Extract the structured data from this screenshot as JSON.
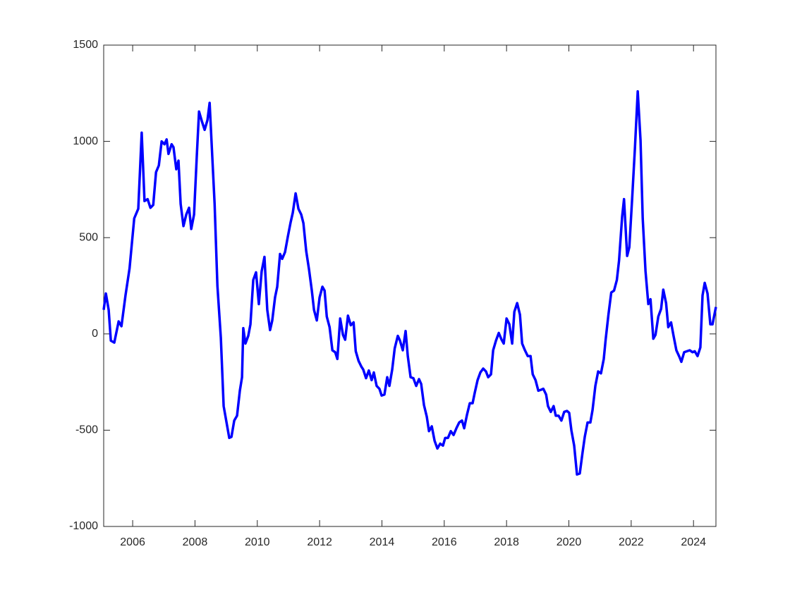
{
  "chart_data": {
    "type": "line",
    "color": "#0000ff",
    "x": [
      2005.07,
      2005.14,
      2005.23,
      2005.3,
      2005.41,
      2005.55,
      2005.64,
      2005.77,
      2005.9,
      2006.05,
      2006.18,
      2006.29,
      2006.38,
      2006.48,
      2006.57,
      2006.66,
      2006.75,
      2006.84,
      2006.93,
      2007.02,
      2007.09,
      2007.15,
      2007.25,
      2007.31,
      2007.4,
      2007.47,
      2007.54,
      2007.63,
      2007.72,
      2007.81,
      2007.88,
      2007.97,
      2008.06,
      2008.13,
      2008.22,
      2008.31,
      2008.4,
      2008.47,
      2008.63,
      2008.72,
      2008.83,
      2008.92,
      2009.1,
      2009.17,
      2009.26,
      2009.35,
      2009.44,
      2009.51,
      2009.55,
      2009.62,
      2009.71,
      2009.78,
      2009.87,
      2009.96,
      2010.05,
      2010.14,
      2010.23,
      2010.32,
      2010.41,
      2010.48,
      2010.57,
      2010.64,
      2010.73,
      2010.8,
      2010.89,
      2010.98,
      2011.07,
      2011.14,
      2011.23,
      2011.32,
      2011.41,
      2011.48,
      2011.57,
      2011.66,
      2011.75,
      2011.82,
      2011.91,
      2012.0,
      2012.09,
      2012.16,
      2012.23,
      2012.32,
      2012.41,
      2012.5,
      2012.57,
      2012.66,
      2012.75,
      2012.82,
      2012.91,
      2013.0,
      2013.09,
      2013.16,
      2013.25,
      2013.34,
      2013.4,
      2013.49,
      2013.58,
      2013.67,
      2013.74,
      2013.83,
      2013.92,
      2013.99,
      2014.08,
      2014.17,
      2014.24,
      2014.33,
      2014.41,
      2014.51,
      2014.58,
      2014.67,
      2014.76,
      2014.83,
      2014.92,
      2015.01,
      2015.1,
      2015.19,
      2015.26,
      2015.35,
      2015.44,
      2015.51,
      2015.6,
      2015.69,
      2015.78,
      2015.87,
      2015.96,
      2016.03,
      2016.12,
      2016.21,
      2016.3,
      2016.39,
      2016.48,
      2016.57,
      2016.64,
      2016.73,
      2016.82,
      2016.91,
      2016.98,
      2017.07,
      2017.16,
      2017.25,
      2017.34,
      2017.41,
      2017.5,
      2017.57,
      2017.66,
      2017.75,
      2017.84,
      2017.91,
      2018.0,
      2018.09,
      2018.18,
      2018.25,
      2018.34,
      2018.43,
      2018.5,
      2018.59,
      2018.68,
      2018.77,
      2018.84,
      2018.93,
      2019.02,
      2019.11,
      2019.18,
      2019.27,
      2019.33,
      2019.42,
      2019.51,
      2019.58,
      2019.67,
      2019.76,
      2019.85,
      2019.94,
      2020.01,
      2020.08,
      2020.17,
      2020.26,
      2020.35,
      2020.44,
      2020.51,
      2020.6,
      2020.69,
      2020.76,
      2020.85,
      2020.94,
      2021.03,
      2021.12,
      2021.18,
      2021.27,
      2021.36,
      2021.45,
      2021.54,
      2021.61,
      2021.71,
      2021.77,
      2021.87,
      2021.94,
      2022.03,
      2022.12,
      2022.21,
      2022.3,
      2022.37,
      2022.46,
      2022.55,
      2022.62,
      2022.71,
      2022.78,
      2022.87,
      2022.96,
      2023.03,
      2023.12,
      2023.19,
      2023.28,
      2023.36,
      2023.45,
      2023.55,
      2023.61,
      2023.7,
      2023.79,
      2023.88,
      2023.97,
      2024.04,
      2024.13,
      2024.22,
      2024.29,
      2024.36,
      2024.45,
      2024.54,
      2024.61,
      2024.72
    ],
    "values": [
      125,
      210,
      125,
      -35,
      -45,
      65,
      40,
      200,
      340,
      600,
      650,
      1045,
      690,
      700,
      655,
      670,
      840,
      875,
      1000,
      985,
      1010,
      935,
      985,
      970,
      855,
      900,
      675,
      560,
      620,
      655,
      545,
      620,
      930,
      1155,
      1105,
      1060,
      1110,
      1200,
      675,
      250,
      -20,
      -375,
      -540,
      -535,
      -450,
      -425,
      -295,
      -225,
      30,
      -50,
      -10,
      50,
      280,
      320,
      155,
      325,
      400,
      125,
      20,
      70,
      190,
      245,
      415,
      390,
      425,
      505,
      580,
      630,
      730,
      650,
      620,
      575,
      430,
      335,
      225,
      125,
      70,
      190,
      245,
      225,
      90,
      35,
      -85,
      -95,
      -130,
      80,
      -5,
      -30,
      95,
      45,
      60,
      -90,
      -140,
      -170,
      -185,
      -230,
      -190,
      -240,
      -200,
      -270,
      -285,
      -320,
      -315,
      -225,
      -270,
      -185,
      -75,
      -10,
      -35,
      -85,
      15,
      -115,
      -225,
      -230,
      -270,
      -235,
      -260,
      -370,
      -430,
      -505,
      -480,
      -555,
      -595,
      -570,
      -580,
      -540,
      -540,
      -505,
      -525,
      -490,
      -460,
      -450,
      -490,
      -420,
      -360,
      -360,
      -305,
      -240,
      -200,
      -180,
      -195,
      -225,
      -210,
      -85,
      -35,
      5,
      -30,
      -50,
      80,
      50,
      -50,
      115,
      160,
      100,
      -50,
      -85,
      -115,
      -115,
      -210,
      -240,
      -295,
      -290,
      -285,
      -315,
      -375,
      -405,
      -375,
      -425,
      -425,
      -450,
      -405,
      -400,
      -410,
      -500,
      -580,
      -730,
      -725,
      -615,
      -535,
      -460,
      -460,
      -395,
      -270,
      -195,
      -205,
      -130,
      -30,
      100,
      215,
      225,
      280,
      380,
      610,
      700,
      405,
      450,
      700,
      965,
      1260,
      1005,
      600,
      325,
      155,
      180,
      -25,
      -5,
      90,
      130,
      230,
      160,
      35,
      60,
      -10,
      -85,
      -120,
      -145,
      -95,
      -90,
      -85,
      -95,
      -90,
      -115,
      -70,
      200,
      265,
      210,
      50,
      50,
      140
    ],
    "xlim": [
      2005.07,
      2024.72
    ],
    "xticks": [
      2006,
      2008,
      2010,
      2012,
      2014,
      2016,
      2018,
      2020,
      2022,
      2024
    ],
    "ylim": [
      -1000,
      1500
    ],
    "yticks": [
      -1000,
      -500,
      0,
      500,
      1000,
      1500
    ]
  }
}
